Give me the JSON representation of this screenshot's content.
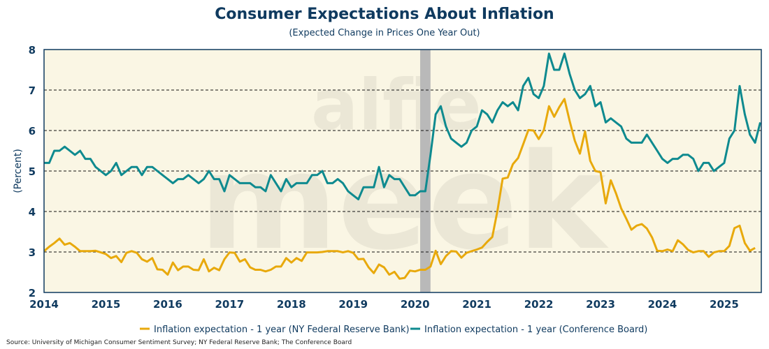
{
  "chart_data": {
    "type": "line",
    "title": "Consumer Expectations About Inflation",
    "subtitle": "(Expected Change in Prices One Year Out)",
    "ylabel": "(Percent)",
    "xlabel": "",
    "ylim": [
      2,
      8
    ],
    "xlim": [
      2014,
      2025.6
    ],
    "yticks": [
      "2",
      "3",
      "4",
      "5",
      "6",
      "7",
      "8"
    ],
    "xticks": [
      "2014",
      "2015",
      "2016",
      "2017",
      "2018",
      "2019",
      "2020",
      "2021",
      "2022",
      "2023",
      "2024",
      "2025"
    ],
    "grid": "horizontal dashed",
    "legend_position": "bottom-center",
    "x_start": 2014.0,
    "x_step_years": 0.08333,
    "recession": [
      2020.083,
      2020.25
    ],
    "series": [
      {
        "name": "Inflation expectation - 1 year (NY Federal Reserve Bank)",
        "color": "#e8a90c",
        "values": [
          3.02,
          3.13,
          3.22,
          3.33,
          3.18,
          3.22,
          3.13,
          3.02,
          3.02,
          3.02,
          3.03,
          2.99,
          2.95,
          2.85,
          2.9,
          2.75,
          2.98,
          3.02,
          2.98,
          2.82,
          2.76,
          2.85,
          2.57,
          2.56,
          2.44,
          2.74,
          2.55,
          2.64,
          2.64,
          2.56,
          2.55,
          2.82,
          2.52,
          2.61,
          2.55,
          2.82,
          2.99,
          2.98,
          2.76,
          2.82,
          2.62,
          2.56,
          2.56,
          2.52,
          2.56,
          2.64,
          2.64,
          2.85,
          2.74,
          2.85,
          2.78,
          2.99,
          2.99,
          2.99,
          3.0,
          3.02,
          3.02,
          3.02,
          2.99,
          3.02,
          2.98,
          2.82,
          2.83,
          2.62,
          2.48,
          2.69,
          2.62,
          2.44,
          2.51,
          2.34,
          2.36,
          2.54,
          2.52,
          2.56,
          2.56,
          2.64,
          3.03,
          2.7,
          2.9,
          3.02,
          3.01,
          2.86,
          2.98,
          3.02,
          3.06,
          3.11,
          3.25,
          3.37,
          4.02,
          4.81,
          4.84,
          5.17,
          5.32,
          5.66,
          6.01,
          6.0,
          5.79,
          6.01,
          6.6,
          6.34,
          6.58,
          6.78,
          6.24,
          5.75,
          5.43,
          5.98,
          5.25,
          5.0,
          4.97,
          4.2,
          4.77,
          4.45,
          4.08,
          3.82,
          3.55,
          3.65,
          3.69,
          3.58,
          3.36,
          3.03,
          3.02,
          3.06,
          3.02,
          3.29,
          3.19,
          3.05,
          2.99,
          3.02,
          3.02,
          2.88,
          2.99,
          3.02,
          3.02,
          3.15,
          3.59,
          3.65,
          3.22,
          3.03,
          3.1
        ]
      },
      {
        "name": "Inflation expectation - 1 year (Conference Board)",
        "color": "#0e8a8f",
        "values": [
          5.2,
          5.2,
          5.5,
          5.5,
          5.6,
          5.5,
          5.4,
          5.5,
          5.3,
          5.3,
          5.1,
          5.0,
          4.9,
          5.0,
          5.2,
          4.9,
          5.0,
          5.1,
          5.1,
          4.9,
          5.1,
          5.1,
          5.0,
          4.9,
          4.8,
          4.7,
          4.8,
          4.8,
          4.9,
          4.8,
          4.7,
          4.8,
          5.0,
          4.8,
          4.8,
          4.5,
          4.9,
          4.8,
          4.7,
          4.7,
          4.7,
          4.6,
          4.6,
          4.5,
          4.9,
          4.7,
          4.5,
          4.8,
          4.6,
          4.7,
          4.7,
          4.7,
          4.9,
          4.9,
          5.0,
          4.7,
          4.7,
          4.8,
          4.7,
          4.5,
          4.4,
          4.3,
          4.6,
          4.6,
          4.6,
          5.1,
          4.6,
          4.9,
          4.8,
          4.8,
          4.6,
          4.4,
          4.4,
          4.5,
          4.5,
          5.4,
          6.4,
          6.6,
          6.1,
          5.8,
          5.7,
          5.6,
          5.7,
          6.0,
          6.1,
          6.5,
          6.4,
          6.2,
          6.5,
          6.7,
          6.6,
          6.7,
          6.5,
          7.1,
          7.3,
          6.9,
          6.8,
          7.1,
          7.9,
          7.5,
          7.5,
          7.9,
          7.4,
          7.0,
          6.8,
          6.9,
          7.1,
          6.6,
          6.7,
          6.2,
          6.3,
          6.2,
          6.1,
          5.8,
          5.7,
          5.7,
          5.7,
          5.9,
          5.7,
          5.5,
          5.3,
          5.2,
          5.3,
          5.3,
          5.4,
          5.4,
          5.3,
          5.0,
          5.2,
          5.2,
          5.0,
          5.1,
          5.2,
          5.8,
          6.0,
          7.1,
          6.4,
          5.9,
          5.7,
          6.2
        ]
      }
    ],
    "source": "Source: University of Michigan Consumer Sentiment Survey; NY Federal Reserve Bank; The Conference Board",
    "watermark": [
      "alfie",
      "meek"
    ]
  }
}
